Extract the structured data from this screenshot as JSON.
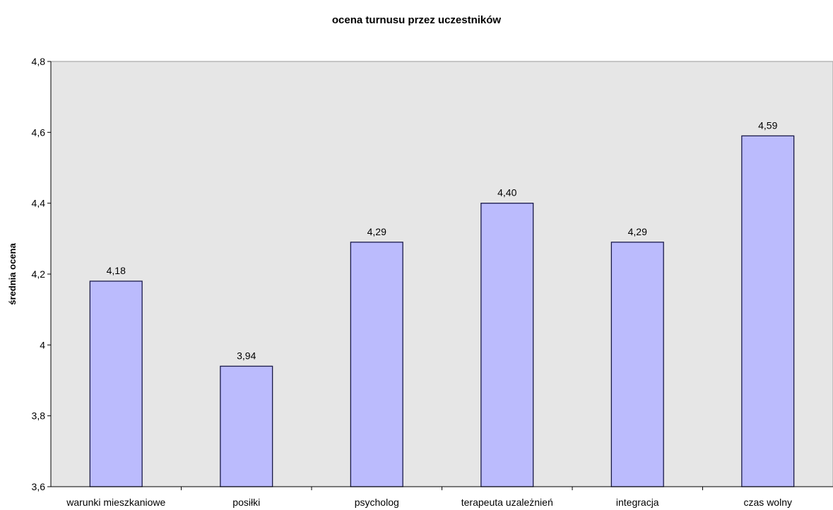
{
  "chart_data": {
    "type": "bar",
    "title": "ocena turnusu przez uczestników",
    "xlabel": "",
    "ylabel": "średnia ocena",
    "categories": [
      "warunki mieszkaniowe",
      "posiłki",
      "psycholog",
      "terapeuta uzależnień",
      "integracja",
      "czas wolny"
    ],
    "values": [
      4.18,
      3.94,
      4.29,
      4.4,
      4.29,
      4.59
    ],
    "data_labels": [
      "4,18",
      "3,94",
      "4,29",
      "4,40",
      "4,29",
      "4,59"
    ],
    "ylim": [
      3.6,
      4.8
    ],
    "y_ticks": [
      3.6,
      3.8,
      4.0,
      4.2,
      4.4,
      4.6,
      4.8
    ],
    "y_tick_labels": [
      "3,6",
      "3,8",
      "4",
      "4,2",
      "4,4",
      "4,6",
      "4,8"
    ],
    "grid": false,
    "legend": "none",
    "colors": {
      "bar_fill": "#bbbbfd",
      "bar_stroke": "#1a1a4a",
      "plot_background": "#e6e6e6",
      "axis": "#000000"
    }
  }
}
